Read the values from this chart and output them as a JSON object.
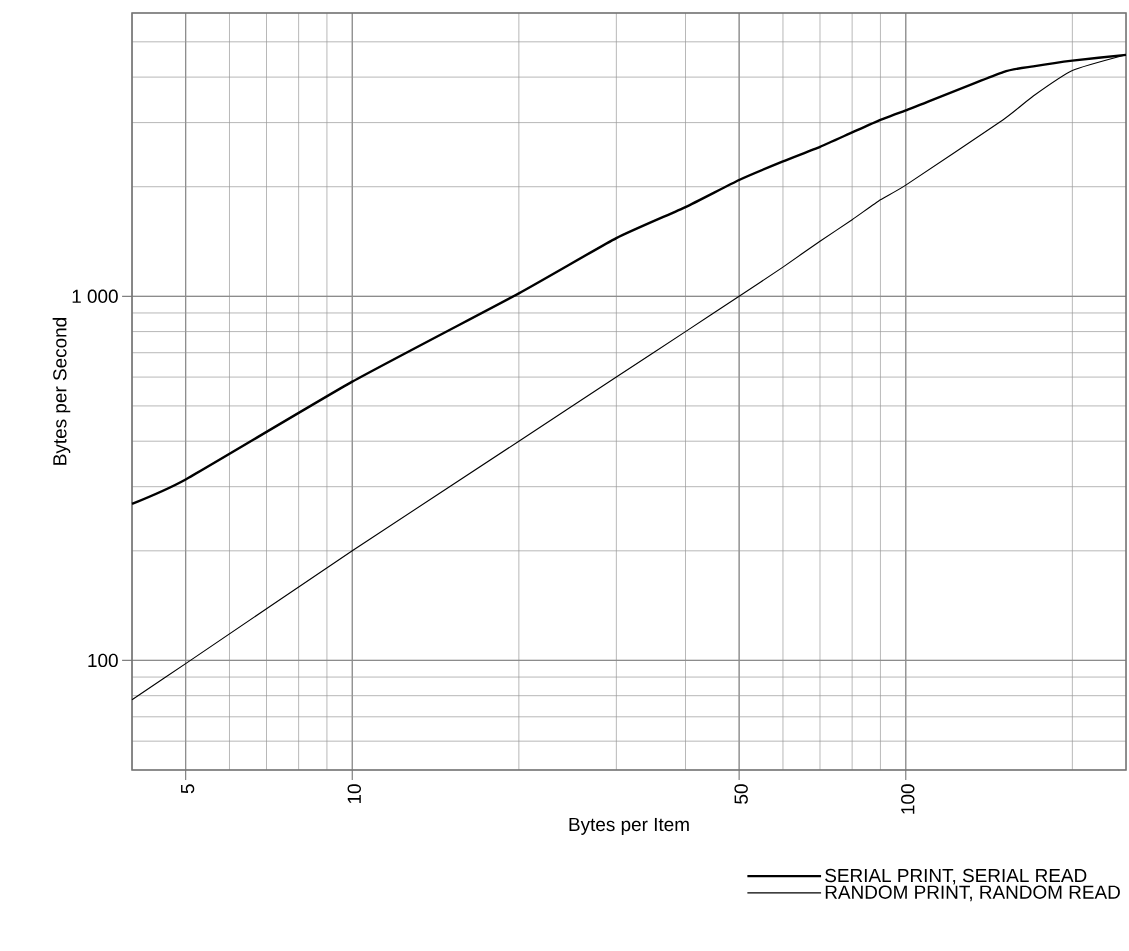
{
  "chart_data": {
    "type": "line",
    "xlabel": "Bytes per Item",
    "ylabel": "Bytes per Second",
    "log": "xy",
    "x": [
      4,
      5,
      10,
      20,
      30,
      40,
      50,
      60,
      70,
      80,
      90,
      100,
      150,
      170,
      200,
      250
    ],
    "series": [
      {
        "name": "SERIAL PRINT, SERIAL READ",
        "color": "#000000",
        "values": [
          269,
          314,
          583,
          1019,
          1445,
          1758,
          2087,
          2347,
          2573,
          2820,
          3054,
          3240,
          4130,
          4280,
          4440,
          4605
        ]
      },
      {
        "name": "RANDOM PRINT, RANDOM READ",
        "color": "#000000",
        "values": [
          78,
          98,
          200,
          400,
          600,
          800,
          1000,
          1203,
          1417,
          1623,
          1842,
          2020,
          3056,
          3550,
          4170,
          4605
        ]
      }
    ],
    "xlim": [
      4,
      250
    ],
    "ylim": [
      50,
      6000
    ],
    "xticks": [
      5,
      10,
      50,
      100
    ],
    "yticks": [
      100,
      {
        "value": 1000,
        "label": "1 000"
      }
    ],
    "grid": true,
    "legend": "bottom right",
    "marker": "none",
    "line_style": "solid"
  }
}
